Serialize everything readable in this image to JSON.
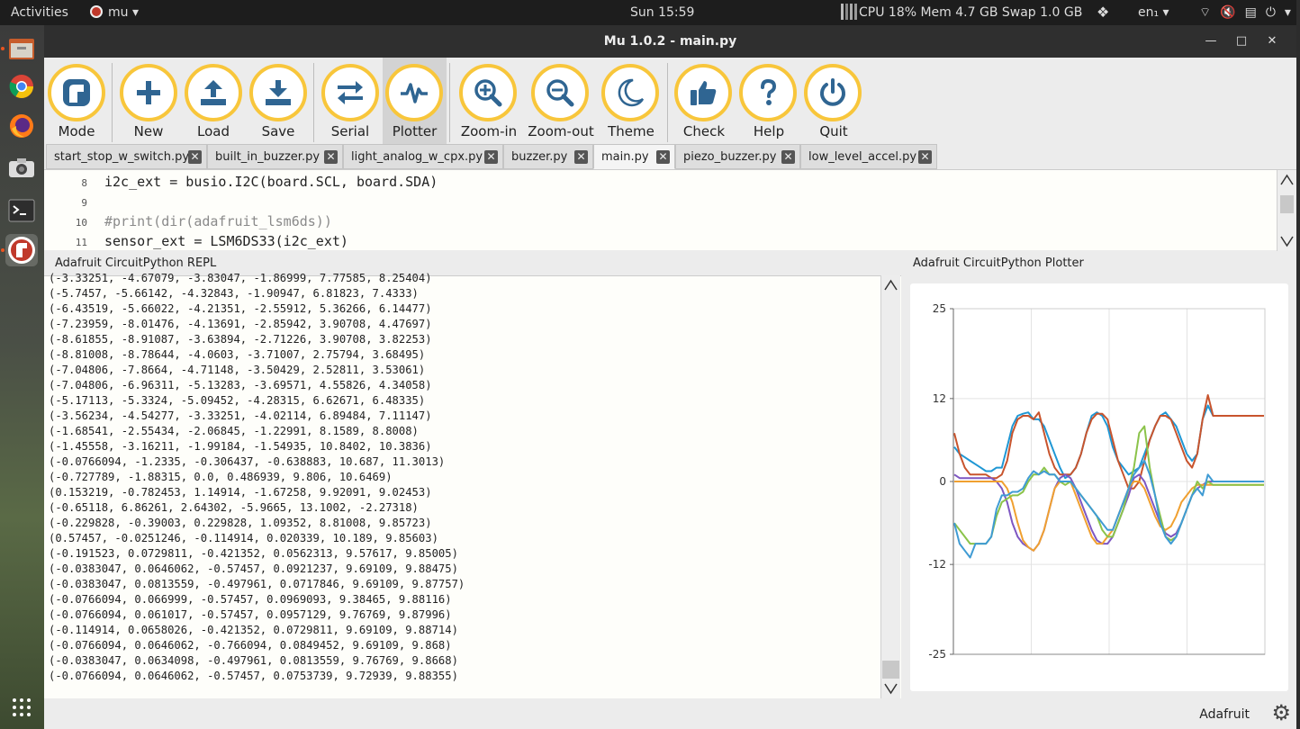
{
  "topbar": {
    "activities": "Activities",
    "app_name": "mu",
    "clock": "Sun 15:59",
    "sysmon": "CPU 18% Mem 4.7 GB Swap 1.0 GB",
    "language": "en₁",
    "tray_icons": [
      "wifi-icon",
      "volume-muted-icon",
      "clipboard-icon",
      "power-icon"
    ]
  },
  "dock": [
    "files-icon",
    "chrome-icon",
    "firefox-icon",
    "camera-icon",
    "terminal-icon",
    "mu-icon",
    "app-grid-icon"
  ],
  "window": {
    "title": "Mu 1.0.2 - main.py",
    "controls": [
      "—",
      "□",
      "✕"
    ]
  },
  "toolbar": [
    {
      "id": "mode",
      "label": "Mode",
      "icon": "mode-icon"
    },
    {
      "id": "new",
      "label": "New",
      "icon": "plus-icon"
    },
    {
      "id": "load",
      "label": "Load",
      "icon": "upload-icon"
    },
    {
      "id": "save",
      "label": "Save",
      "icon": "download-icon"
    },
    {
      "id": "serial",
      "label": "Serial",
      "icon": "arrows-icon"
    },
    {
      "id": "plotter",
      "label": "Plotter",
      "icon": "pulse-icon",
      "selected": true
    },
    {
      "id": "zoom-in",
      "label": "Zoom-in",
      "icon": "zoom-in-icon"
    },
    {
      "id": "zoom-out",
      "label": "Zoom-out",
      "icon": "zoom-out-icon"
    },
    {
      "id": "theme",
      "label": "Theme",
      "icon": "moon-icon"
    },
    {
      "id": "check",
      "label": "Check",
      "icon": "thumbs-up-icon"
    },
    {
      "id": "help",
      "label": "Help",
      "icon": "question-icon"
    },
    {
      "id": "quit",
      "label": "Quit",
      "icon": "power-icon"
    }
  ],
  "tabs": [
    {
      "name": "start_stop_w_switch.py"
    },
    {
      "name": "built_in_buzzer.py"
    },
    {
      "name": "light_analog_w_cpx.py"
    },
    {
      "name": "buzzer.py"
    },
    {
      "name": "main.py",
      "active": true
    },
    {
      "name": "piezo_buzzer.py"
    },
    {
      "name": "low_level_accel.py"
    }
  ],
  "editor": {
    "lines": [
      {
        "num": "8",
        "text": "i2c_ext = busio.I2C(board.SCL, board.SDA)",
        "comment": false
      },
      {
        "num": "9",
        "text": "",
        "comment": false
      },
      {
        "num": "10",
        "text": "#print(dir(adafruit_lsm6ds))",
        "comment": true
      },
      {
        "num": "11",
        "text": "sensor_ext = LSM6DS33(i2c_ext)",
        "comment": false
      }
    ]
  },
  "repl": {
    "title": "Adafruit CircuitPython REPL",
    "lines": [
      "(-3.33251, -4.67079, -3.83047, -1.86999, 7.77585, 8.25404)",
      "(-5.7457, -5.66142, -4.32843, -1.90947, 6.81823, 7.4333)",
      "(-6.43519, -5.66022, -4.21351, -2.55912, 5.36266, 6.14477)",
      "(-7.23959, -8.01476, -4.13691, -2.85942, 3.90708, 4.47697)",
      "(-8.61855, -8.91087, -3.63894, -2.71226, 3.90708, 3.82253)",
      "(-8.81008, -8.78644, -4.0603, -3.71007, 2.75794, 3.68495)",
      "(-7.04806, -7.8664, -4.71148, -3.50429, 2.52811, 3.53061)",
      "(-7.04806, -6.96311, -5.13283, -3.69571, 4.55826, 4.34058)",
      "(-5.17113, -5.3324, -5.09452, -4.28315, 6.62671, 6.48335)",
      "(-3.56234, -4.54277, -3.33251, -4.02114, 6.89484, 7.11147)",
      "(-1.68541, -2.55434, -2.06845, -1.22991, 8.1589, 8.8008)",
      "(-1.45558, -3.16211, -1.99184, -1.54935, 10.8402, 10.3836)",
      "(-0.0766094, -1.2335, -0.306437, -0.638883, 10.687, 11.3013)",
      "(-0.727789, -1.88315, 0.0, 0.486939, 9.806, 10.6469)",
      "(0.153219, -0.782453, 1.14914, -1.67258, 9.92091, 9.02453)",
      "(-0.65118, 6.86261, 2.64302, -5.9665, 13.1002, -2.27318)",
      "(-0.229828, -0.39003, 0.229828, 1.09352, 8.81008, 9.85723)",
      "(0.57457, -0.0251246, -0.114914, 0.020339, 10.189, 9.85603)",
      "(-0.191523, 0.0729811, -0.421352, 0.0562313, 9.57617, 9.85005)",
      "(-0.0383047, 0.0646062, -0.57457, 0.0921237, 9.69109, 9.88475)",
      "(-0.0383047, 0.0813559, -0.497961, 0.0717846, 9.69109, 9.87757)",
      "(-0.0766094, 0.066999, -0.57457, 0.0969093, 9.38465, 9.88116)",
      "(-0.0766094, 0.061017, -0.57457, 0.0957129, 9.76769, 9.87996)",
      "(-0.114914, 0.0658026, -0.421352, 0.0729811, 9.69109, 9.88714)",
      "(-0.0766094, 0.0646062, -0.766094, 0.0849452, 9.69109, 9.868)",
      "(-0.0383047, 0.0634098, -0.497961, 0.0813559, 9.76769, 9.8668)",
      "(-0.0766094, 0.0646062, -0.57457, 0.0753739, 9.72939, 9.88355)"
    ]
  },
  "plotter": {
    "title": "Adafruit CircuitPython Plotter"
  },
  "chart_data": {
    "type": "line",
    "title": "",
    "xlabel": "",
    "ylabel": "",
    "ylim": [
      -25,
      25
    ],
    "yticks": [
      "25",
      "12",
      "0",
      "-12",
      "-25"
    ],
    "ytick_values": [
      25,
      12,
      0,
      -12,
      -25
    ],
    "grid": true,
    "series": [
      {
        "color": "#1f97d4",
        "values": [
          5,
          4,
          3.5,
          3,
          2.5,
          2,
          1.5,
          1.5,
          2,
          2,
          5,
          8,
          9.5,
          9.8,
          10,
          9,
          9,
          8,
          6,
          4,
          2,
          0.5,
          1,
          2,
          4,
          7,
          9.5,
          10,
          9.5,
          8,
          5,
          3,
          2,
          1,
          1.5,
          2,
          4,
          6,
          8,
          9.5,
          10,
          9,
          8,
          6,
          4,
          3,
          4,
          9,
          11,
          9.5,
          9.5,
          9.5,
          9.5,
          9.5
        ]
      },
      {
        "color": "#c8542d",
        "values": [
          7,
          4,
          2,
          1,
          1,
          1,
          1,
          0.5,
          0.5,
          1,
          3,
          7,
          9,
          9.5,
          9.5,
          9,
          10,
          7,
          4,
          2,
          1,
          1,
          1,
          2,
          4,
          7,
          9,
          9.8,
          9.8,
          9,
          6,
          3,
          1,
          -1,
          -1,
          0,
          3,
          6,
          8,
          9.5,
          9.5,
          9,
          7,
          5,
          3,
          2,
          4,
          9,
          12.5,
          9.5,
          9.5,
          9.5,
          9.5,
          9.5
        ]
      },
      {
        "color": "#7e57c2",
        "values": [
          1,
          0.5,
          0.5,
          0.5,
          0.5,
          0.5,
          0.5,
          0.5,
          0,
          -1,
          -3,
          -6,
          -8,
          -9,
          -9.5,
          -10,
          -9,
          -7,
          -4,
          -1,
          0.5,
          1,
          0.5,
          -1,
          -3,
          -5,
          -7,
          -8.5,
          -9,
          -9,
          -8,
          -6,
          -4,
          -2,
          0.5,
          1,
          0,
          -2,
          -4,
          -6,
          -7.5,
          -8,
          -7.5,
          -6,
          -4,
          -2,
          -1,
          -0.5,
          0,
          0,
          0,
          0,
          0,
          0
        ]
      },
      {
        "color": "#f0a030",
        "values": [
          0,
          0,
          0,
          0,
          0,
          0,
          0,
          0,
          0,
          0,
          -1,
          -3,
          -6,
          -8.5,
          -9.5,
          -10,
          -9,
          -7,
          -4,
          -1,
          0,
          0,
          0,
          -2,
          -4,
          -6,
          -8,
          -9,
          -9,
          -8,
          -7,
          -5,
          -3,
          -1,
          0,
          0,
          -1,
          -3,
          -5,
          -6.5,
          -7,
          -6.5,
          -5,
          -3,
          -2,
          -1,
          -0.5,
          -0.5,
          -0.5,
          -0.5,
          -0.5,
          -0.5,
          -0.5,
          -0.5
        ]
      },
      {
        "color": "#8bc34a",
        "values": [
          -6,
          -7,
          -8,
          -9,
          -9,
          -9,
          -9,
          -8,
          -5,
          -3,
          -2.5,
          -2,
          -2,
          -1.5,
          0,
          1,
          1,
          2,
          1,
          1,
          0,
          -0.5,
          0,
          -1,
          -2,
          -3,
          -4,
          -5,
          -7,
          -8,
          -8,
          -6,
          -4,
          -1,
          2,
          7,
          8,
          2,
          -2,
          -5,
          -8,
          -8.5,
          -8,
          -6,
          -4,
          -2,
          0,
          -1,
          0,
          -0.5,
          -0.5,
          -0.5,
          -0.5,
          -0.5
        ]
      },
      {
        "color": "#3f9bd4",
        "values": [
          -6,
          -9,
          -10,
          -11,
          -9,
          -9,
          -9,
          -8,
          -4,
          -2,
          -2,
          -1.5,
          -1.5,
          -1,
          0.5,
          1.5,
          1,
          1.5,
          1,
          1,
          0,
          0,
          0,
          -1,
          -2,
          -3,
          -4,
          -5,
          -6,
          -7,
          -7,
          -5,
          -3,
          -1,
          1,
          2,
          3,
          1,
          -2,
          -6,
          -8,
          -9,
          -8,
          -6,
          -4,
          -2,
          -1,
          -2,
          1,
          0,
          0,
          0,
          0,
          0
        ]
      }
    ]
  },
  "status": {
    "mode": "Adafruit"
  }
}
